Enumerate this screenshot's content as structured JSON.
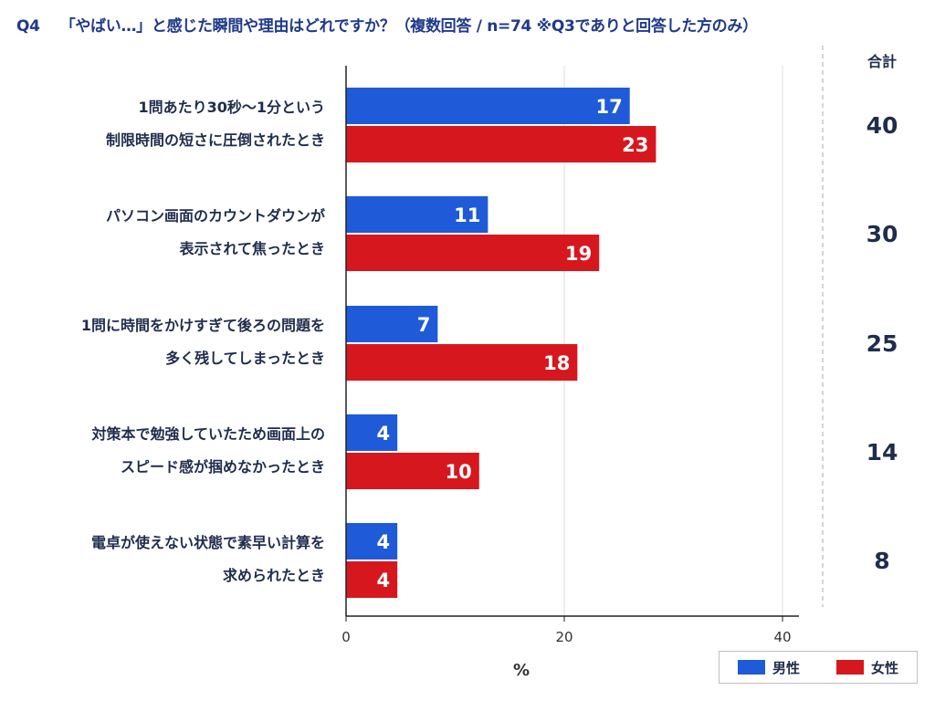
{
  "header": {
    "question_no": "Q4",
    "question_text": "「やばい…」と感じた瞬間や理由はどれですか？（複数回答 / n=74 ※Q3でありと回答した方のみ）",
    "total_header": "合計"
  },
  "chart_data": {
    "type": "bar",
    "orientation": "horizontal",
    "categories": [
      [
        "1問あたり30秒〜1分という",
        "制限時間の短さに圧倒されたとき"
      ],
      [
        "パソコン画面のカウントダウンが",
        "表示されて焦ったとき"
      ],
      [
        "1問に時間をかけすぎて後ろの問題を",
        "多く残してしまったとき"
      ],
      [
        "対策本で勉強していたため画面上の",
        "スピード感が掴めなかったとき"
      ],
      [
        "電卓が使えない状態で素早い計算を",
        "求められたとき"
      ]
    ],
    "series": [
      {
        "name": "男性",
        "color": "#1f5bd8",
        "values": [
          17,
          11,
          7,
          4,
          4
        ],
        "display_scale": [
          26,
          13,
          8.4,
          4.7,
          4.7
        ]
      },
      {
        "name": "女性",
        "color": "#d6181e",
        "values": [
          23,
          19,
          18,
          10,
          4
        ],
        "display_scale": [
          28.4,
          23.2,
          21.2,
          12.2,
          4.7
        ]
      }
    ],
    "totals": [
      40,
      30,
      25,
      14,
      8
    ],
    "xlim": [
      0,
      42
    ],
    "xticks": [
      0,
      20,
      40
    ],
    "xlabel": "%",
    "grid": true,
    "legend_position": "bottom-right"
  }
}
